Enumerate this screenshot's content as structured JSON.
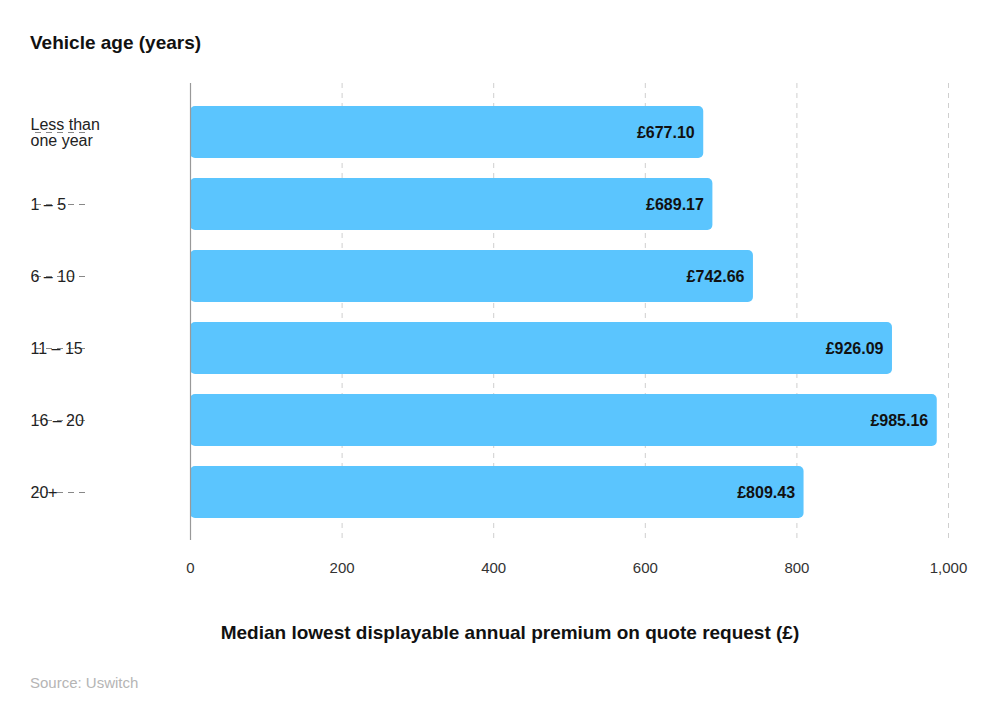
{
  "chart_data": {
    "type": "bar",
    "orientation": "horizontal",
    "y_label": "Vehicle age (years)",
    "x_label": "Median lowest displayable annual premium on quote request (£)",
    "source": "Source: Uswitch",
    "categories": [
      "Less than one year",
      "1 – 5",
      "6 – 10",
      "11 – 15",
      "16 – 20",
      "20+"
    ],
    "values": [
      677.1,
      689.17,
      742.66,
      926.09,
      985.16,
      809.43
    ],
    "value_labels": [
      "£677.10",
      "£689.17",
      "£742.66",
      "£926.09",
      "£985.16",
      "£809.43"
    ],
    "data_labels": true,
    "color": "#5bc5fe",
    "xlim": [
      0,
      1000
    ],
    "xticks": [
      0,
      200,
      400,
      600,
      800,
      {
        "value": 1000,
        "label": "1,000"
      }
    ],
    "grid": true
  }
}
